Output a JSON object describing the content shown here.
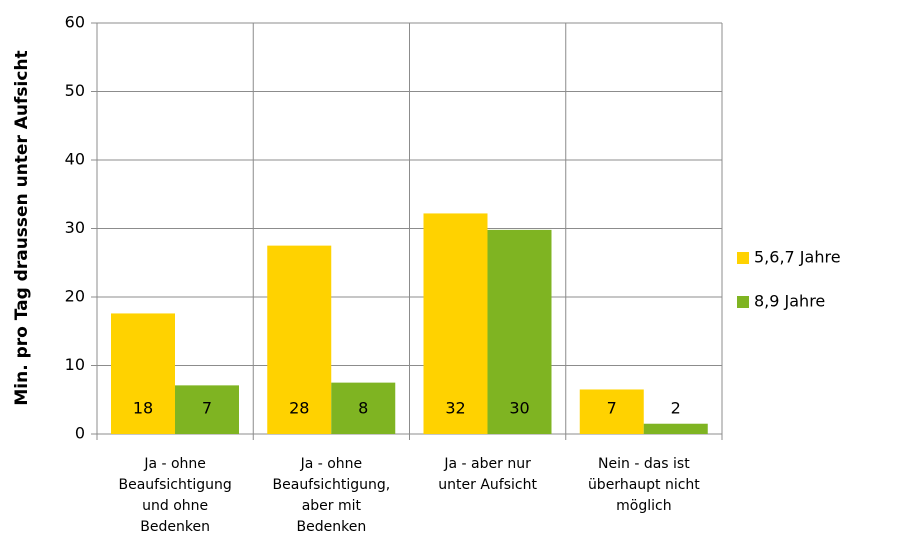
{
  "chart_data": {
    "type": "bar",
    "ylabel": "Min. pro Tag draussen unter Aufsicht",
    "categories": [
      [
        "Ja - ohne",
        "Beaufsichtigung",
        "und ohne",
        "Bedenken"
      ],
      [
        "Ja - ohne",
        "Beaufsichtigung,",
        "aber mit",
        "Bedenken"
      ],
      [
        "Ja - aber nur",
        "unter Aufsicht"
      ],
      [
        "Nein - das ist",
        "überhaupt nicht",
        "möglich"
      ]
    ],
    "series": [
      {
        "name": "5,6,7 Jahre",
        "color": "#ffd200",
        "values": [
          17.6,
          27.5,
          32.2,
          6.5
        ],
        "value_labels": [
          "18",
          "28",
          "32",
          "7"
        ]
      },
      {
        "name": "8,9 Jahre",
        "color": "#7fb422",
        "values": [
          7.1,
          7.5,
          29.8,
          1.5
        ],
        "value_labels": [
          "7",
          "8",
          "30",
          "2"
        ]
      }
    ],
    "ylim": [
      0,
      60
    ],
    "yticks": [
      0,
      10,
      20,
      30,
      40,
      50,
      60
    ],
    "grid": true,
    "legend": "right"
  }
}
